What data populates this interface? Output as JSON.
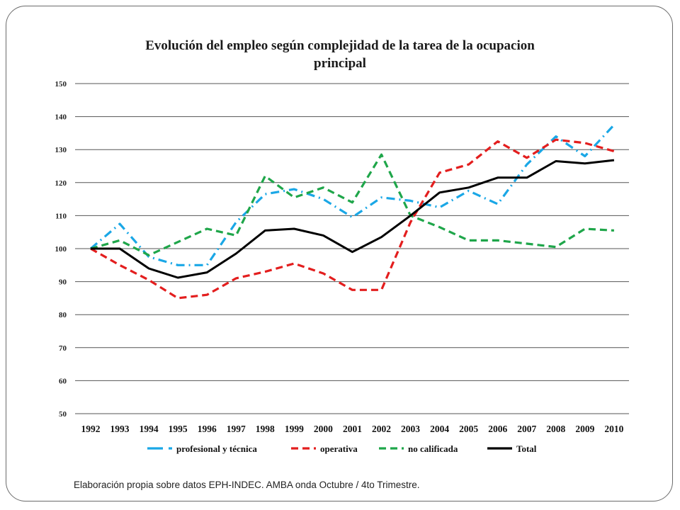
{
  "chart_data": {
    "type": "line",
    "title_lines": [
      "Evolución del empleo según complejidad de la tarea de la ocupacion",
      "principal"
    ],
    "xlabel": "",
    "ylabel": "",
    "ylim": [
      50,
      150
    ],
    "yticks": [
      50,
      60,
      70,
      80,
      90,
      100,
      110,
      120,
      130,
      140,
      150
    ],
    "grid": true,
    "legend_position": "bottom",
    "categories": [
      "1992",
      "1993",
      "1994",
      "1995",
      "1996",
      "1997",
      "1998",
      "1999",
      "2000",
      "2001",
      "2002",
      "2003",
      "2004",
      "2005",
      "2006",
      "2007",
      "2008",
      "2009",
      "2010"
    ],
    "series": [
      {
        "name": "profesional y técnica",
        "color": "#1aa7e6",
        "dash": "dashdot",
        "values": [
          100,
          107.5,
          97.5,
          95,
          95,
          108,
          116.5,
          118,
          115,
          109.5,
          115.5,
          114.5,
          112.5,
          117.5,
          113.5,
          125.5,
          134,
          128,
          137.5
        ]
      },
      {
        "name": "operativa",
        "color": "#e31e1e",
        "dash": "dash",
        "values": [
          100,
          95,
          90.5,
          85,
          86,
          91,
          93,
          95.5,
          92.5,
          87.5,
          87.5,
          108,
          123,
          125.5,
          132.5,
          127.5,
          133,
          132,
          129.5
        ]
      },
      {
        "name": "no calificada",
        "color": "#1fa64a",
        "dash": "dash",
        "values": [
          100,
          102.5,
          98,
          102,
          106,
          104,
          122,
          115.5,
          118.5,
          114,
          128.5,
          110,
          106.5,
          102.5,
          102.5,
          101.5,
          100.5,
          106,
          105.5
        ]
      },
      {
        "name": "Total",
        "color": "#000000",
        "dash": "solid",
        "values": [
          100,
          100,
          94,
          91.2,
          92.8,
          98.5,
          105.5,
          106,
          104,
          99,
          103.5,
          110,
          117,
          118.5,
          121.5,
          121.5,
          126.5,
          125.8,
          126.8
        ]
      }
    ]
  },
  "footer": {
    "source": "Elaboración propia sobre datos EPH-INDEC. AMBA onda Octubre / 4to Trimestre."
  }
}
